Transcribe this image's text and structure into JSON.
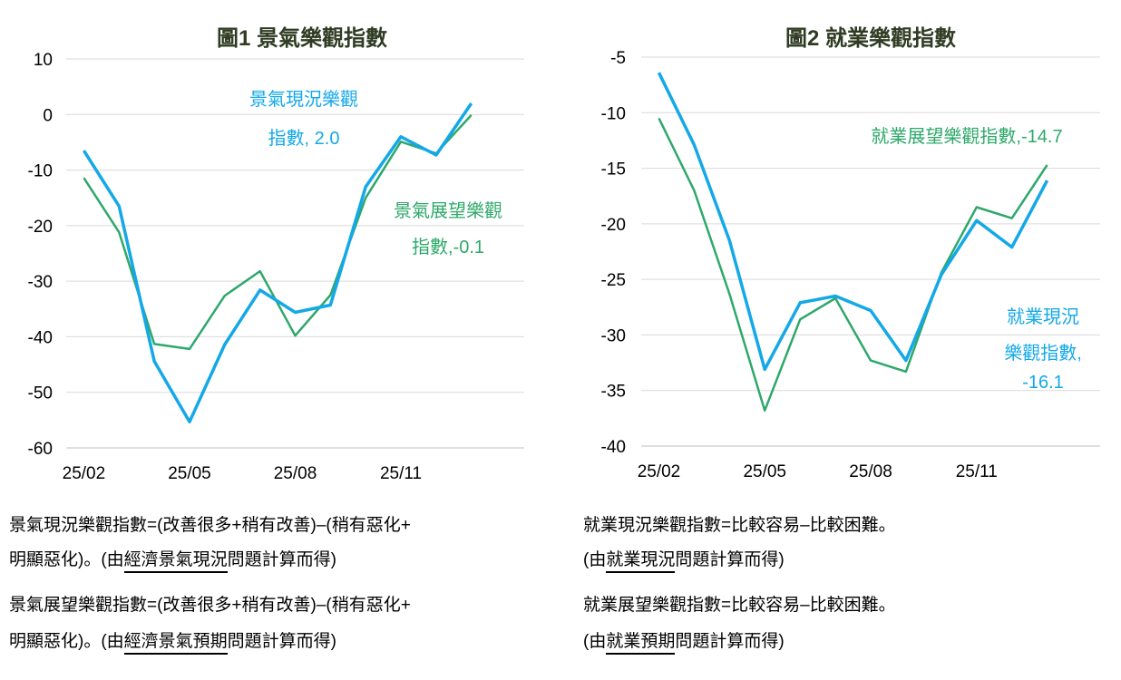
{
  "chart_data": [
    {
      "type": "line",
      "title": "圖1  景氣樂觀指數",
      "categories": [
        "25/02",
        "25/03",
        "25/04",
        "25/05",
        "25/06",
        "25/07",
        "25/08",
        "25/09",
        "25/10",
        "25/11",
        "25/12",
        "26/01"
      ],
      "x_tick_labels": [
        "25/02",
        "25/05",
        "25/08",
        "25/11"
      ],
      "ylim": [
        -60,
        10
      ],
      "y_ticks": [
        10,
        0,
        -10,
        -20,
        -30,
        -40,
        -50,
        -60
      ],
      "grid": true,
      "series": [
        {
          "name": "景氣現況樂觀指數",
          "color": "#14a8e8",
          "values": [
            -6.5,
            -16.5,
            -44.4,
            -55.3,
            -41.4,
            -31.6,
            -35.6,
            -34.3,
            -13.0,
            -4.0,
            -7.3,
            2.0
          ],
          "annotation": [
            "景氣現況樂觀",
            "指數, 2.0"
          ]
        },
        {
          "name": "景氣展望樂觀指數",
          "color": "#2ea86a",
          "values": [
            -11.4,
            -21.2,
            -41.3,
            -42.2,
            -32.6,
            -28.2,
            -39.8,
            -32.5,
            -15.0,
            -4.9,
            -7.0,
            -0.1
          ],
          "annotation": [
            "景氣展望樂觀",
            "指數,-0.1"
          ]
        }
      ]
    },
    {
      "type": "line",
      "title": "圖2  就業樂觀指數",
      "categories": [
        "25/02",
        "25/03",
        "25/04",
        "25/05",
        "25/06",
        "25/07",
        "25/08",
        "25/09",
        "25/10",
        "25/11",
        "25/12",
        "26/01"
      ],
      "x_tick_labels": [
        "25/02",
        "25/05",
        "25/08",
        "25/11"
      ],
      "ylim": [
        -40,
        -5
      ],
      "y_ticks": [
        -5,
        -10,
        -15,
        -20,
        -25,
        -30,
        -35,
        -40
      ],
      "grid": true,
      "series": [
        {
          "name": "就業現況樂觀指數",
          "color": "#14a8e8",
          "values": [
            -6.4,
            -12.9,
            -21.5,
            -33.1,
            -27.1,
            -26.5,
            -27.8,
            -32.3,
            -24.6,
            -19.7,
            -22.1,
            -16.1
          ],
          "annotation": [
            "就業現況",
            "樂觀指數,",
            "-16.1"
          ]
        },
        {
          "name": "就業展望樂觀指數",
          "color": "#2ea86a",
          "values": [
            -10.5,
            -17.0,
            -26.3,
            -36.8,
            -28.6,
            -26.7,
            -32.3,
            -33.3,
            -24.4,
            -18.5,
            -19.5,
            -14.7
          ],
          "annotation": [
            "就業展望樂觀指數,-14.7"
          ]
        }
      ]
    }
  ],
  "notes": {
    "left": [
      {
        "line1": "景氣現況樂觀指數=(改善很多+稍有改善)–(稍有惡化+",
        "pre": "明顯惡化)。(由",
        "ul": "經濟景氣現況",
        "post": "問題計算而得)"
      },
      {
        "line1": "景氣展望樂觀指數=(改善很多+稍有改善)–(稍有惡化+",
        "pre": "明顯惡化)。(由",
        "ul": "經濟景氣預期",
        "post": "問題計算而得)"
      }
    ],
    "right": [
      {
        "line1": "就業現況樂觀指數=比較容易–比較困難。",
        "pre": "(由",
        "ul": "就業現況",
        "post": "問題計算而得)"
      },
      {
        "line1": "就業展望樂觀指數=比較容易–比較困難。",
        "pre": "(由",
        "ul": "就業預期",
        "post": "問題計算而得)"
      }
    ]
  }
}
